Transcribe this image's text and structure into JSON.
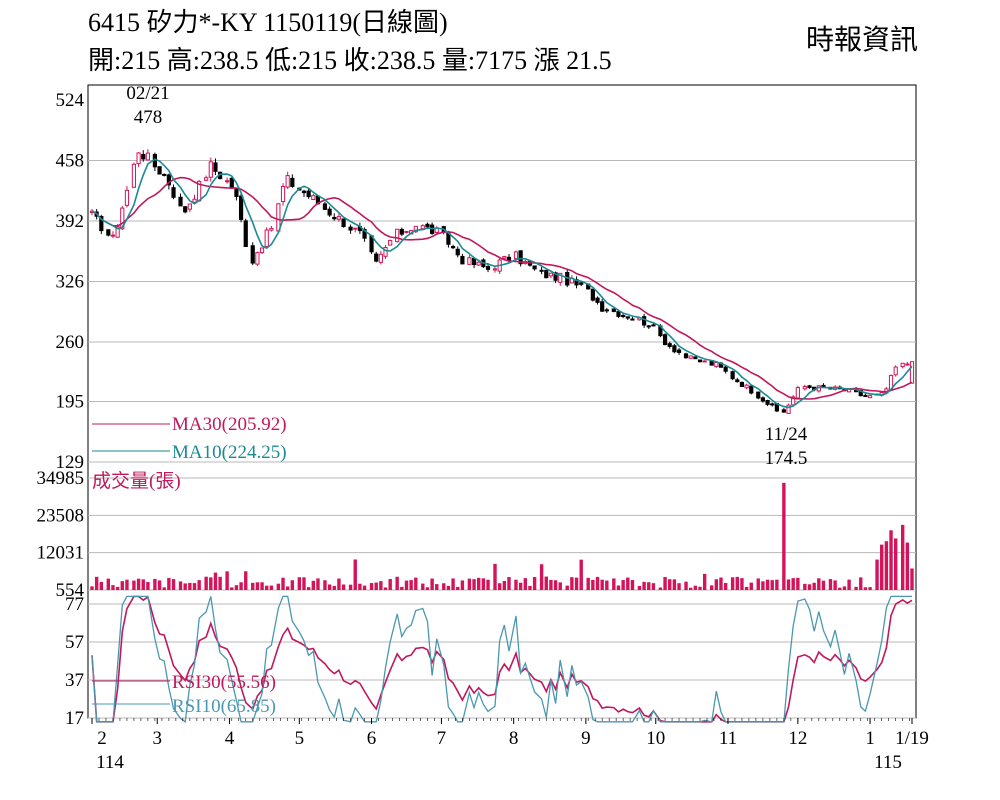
{
  "header": {
    "title": "6415  矽力*-KY 1150119(日線圖)",
    "ohlc": "開:215 高:238.5 低:215 收:238.5 量:7175 漲 21.5",
    "source": "時報資訊"
  },
  "colors": {
    "up": "#d4145a",
    "down": "#000000",
    "ma30": "#c0185c",
    "ma10": "#1a8a95",
    "volume": "#d4145a",
    "rsi30": "#c0185c",
    "rsi10": "#4a98b0",
    "grid": "#b8b8b8"
  },
  "chart_data": [
    {
      "type": "candlestick",
      "name": "price",
      "y_ticks": [
        "524",
        "458",
        "392",
        "326",
        "260",
        "195",
        "129"
      ],
      "ylim": [
        129,
        524
      ],
      "x_tick_labels": [
        "2",
        "3",
        "4",
        "5",
        "6",
        "7",
        "8",
        "9",
        "10",
        "11",
        "12",
        "1",
        "1/19"
      ],
      "x_sub_labels": [
        "114",
        "115"
      ],
      "annotations": [
        {
          "date": "02/21",
          "value": "478"
        },
        {
          "date": "11/24",
          "value": "174.5"
        }
      ],
      "legend": [
        {
          "label": "MA30(205.92)"
        },
        {
          "label": "MA10(224.25)"
        }
      ],
      "keypoints": [
        [
          "2/1",
          398
        ],
        [
          "2/10",
          372
        ],
        [
          "2/21",
          470
        ],
        [
          "3/5",
          440
        ],
        [
          "3/12",
          400
        ],
        [
          "3/24",
          452
        ],
        [
          "4/3",
          428
        ],
        [
          "4/10",
          345
        ],
        [
          "4/20",
          390
        ],
        [
          "4/25",
          438
        ],
        [
          "5/5",
          420
        ],
        [
          "5/15",
          400
        ],
        [
          "5/27",
          378
        ],
        [
          "6/3",
          345
        ],
        [
          "6/10",
          375
        ],
        [
          "6/20",
          388
        ],
        [
          "7/1",
          378
        ],
        [
          "7/10",
          350
        ],
        [
          "7/21",
          340
        ],
        [
          "8/1",
          355
        ],
        [
          "8/12",
          335
        ],
        [
          "8/21",
          330
        ],
        [
          "9/1",
          318
        ],
        [
          "9/8",
          298
        ],
        [
          "9/20",
          288
        ],
        [
          "9/28",
          280
        ],
        [
          "10/6",
          258
        ],
        [
          "10/15",
          242
        ],
        [
          "10/27",
          235
        ],
        [
          "11/5",
          218
        ],
        [
          "11/15",
          200
        ],
        [
          "11/24",
          180
        ],
        [
          "12/2",
          212
        ],
        [
          "12/10",
          210
        ],
        [
          "12/20",
          208
        ],
        [
          "12/31",
          200
        ],
        [
          "1/7",
          203
        ],
        [
          "1/12",
          232
        ],
        [
          "1/19",
          238.5
        ]
      ],
      "last_bar": {
        "open": 215,
        "high": 238.5,
        "low": 215,
        "close": 238.5
      }
    },
    {
      "type": "bar",
      "name": "volume",
      "label": "成交量(張)",
      "y_ticks": [
        "34985",
        "23508",
        "12031",
        "554"
      ],
      "ylim": [
        554,
        34985
      ],
      "peak": 33500,
      "last_value": 7175
    },
    {
      "type": "line",
      "name": "rsi",
      "y_ticks": [
        "77",
        "57",
        "37",
        "17"
      ],
      "ylim": [
        17,
        77
      ],
      "legend": [
        {
          "label": "RSI30(55.56)"
        },
        {
          "label": "RSI10(65.85)"
        }
      ]
    }
  ]
}
